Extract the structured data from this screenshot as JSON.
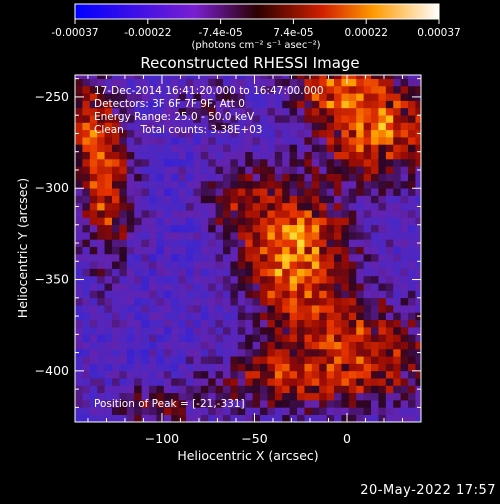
{
  "chart_data": {
    "type": "heatmap",
    "title": "Reconstructed RHESSI Image",
    "xlabel": "Heliocentric X (arcsec)",
    "ylabel": "Heliocentric Y (arcsec)",
    "xlim": [
      -147,
      40
    ],
    "ylim": [
      -428,
      -238
    ],
    "xticks": [
      -100,
      -50,
      0
    ],
    "yticks": [
      -250,
      -300,
      -350,
      -400
    ],
    "colorbar": {
      "ticks": [
        "-0.00037",
        "-0.00022",
        "-7.4e-05",
        "7.4e-05",
        "0.00022",
        "0.00037"
      ],
      "unit_label": "(photons cm⁻² s⁻¹ asec⁻²)",
      "range": [
        -0.00037,
        0.00037
      ]
    },
    "annotations": [
      "17-Dec-2014 16:41:20.000 to 16:47:00.000",
      "Detectors: 3F 6F 7F 9F, Att 0",
      "Energy Range: 25.0 - 50.0 keV",
      "Clean     Total counts: 3.38E+03",
      "Position of Peak = [-21,-331]"
    ],
    "peak": [
      -21,
      -331
    ],
    "sources": [
      {
        "x": -28,
        "y": -335,
        "amp": 0.00037,
        "sx": 20,
        "sy": 28
      },
      {
        "x": 20,
        "y": -270,
        "amp": 0.00032,
        "sx": 22,
        "sy": 18
      },
      {
        "x": -5,
        "y": -245,
        "amp": 0.00026,
        "sx": 18,
        "sy": 12
      },
      {
        "x": -130,
        "y": -300,
        "amp": 0.00026,
        "sx": 10,
        "sy": 30
      },
      {
        "x": -140,
        "y": -265,
        "amp": 0.00022,
        "sx": 8,
        "sy": 18
      },
      {
        "x": 10,
        "y": -390,
        "amp": 0.00026,
        "sx": 25,
        "sy": 20
      },
      {
        "x": -40,
        "y": -405,
        "amp": 0.0002,
        "sx": 25,
        "sy": 12
      },
      {
        "x": -105,
        "y": -420,
        "amp": 0.00014,
        "sx": 20,
        "sy": 8
      },
      {
        "x": -60,
        "y": -305,
        "amp": 0.00014,
        "sx": 12,
        "sy": 15
      },
      {
        "x": -75,
        "y": -255,
        "amp": 0.0001,
        "sx": 12,
        "sy": 10
      }
    ]
  },
  "footer_date": "20-May-2022 17:57"
}
